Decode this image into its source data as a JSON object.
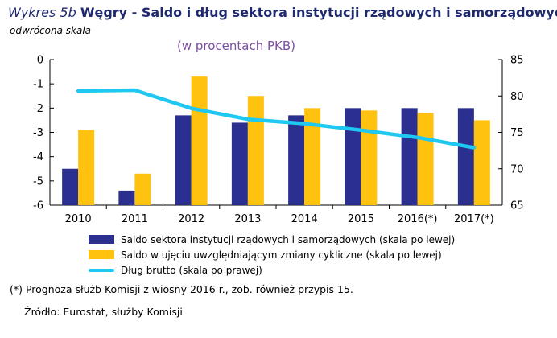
{
  "header": {
    "title_prefix": "Wykres 5b",
    "title": "Węgry - Saldo i dług sektora instytucji rządowych i samorządowych",
    "subtitle": "(w procentach PKB)",
    "axis_note": "odwrócona skala"
  },
  "footnote": "(*)  Prognoza służb Komisji z wiosny 2016 r., zob. również przypis 15.",
  "source": "Źródło: Eurostat, służby Komisji",
  "colors": {
    "series1": "#2b2f8f",
    "series2": "#ffc20e",
    "series3": "#1ec8f0"
  },
  "chart_data": {
    "type": "bar",
    "title": "Węgry - Saldo i dług sektora instytucji rządowych i samorządowych",
    "categories": [
      "2010",
      "2011",
      "2012",
      "2013",
      "2014",
      "2015",
      "2016(*)",
      "2017(*)"
    ],
    "y_left": {
      "ticks": [
        "-6",
        "-5",
        "-4",
        "-3",
        "-2",
        "-1",
        "0"
      ],
      "range": [
        0,
        -6
      ],
      "inverted": true
    },
    "y_right": {
      "ticks": [
        "85",
        "80",
        "75",
        "70",
        "65"
      ],
      "range": [
        65,
        85
      ]
    },
    "series": [
      {
        "name": "Saldo sektora instytucji rządowych i samorządowych (skala po lewej)",
        "type": "bar",
        "axis": "left",
        "values": [
          -4.5,
          -5.4,
          -2.3,
          -2.6,
          -2.3,
          -2.0,
          -2.0,
          -2.0
        ]
      },
      {
        "name": "Saldo w ujęciu uwzględniającym zmiany cykliczne (skala po lewej)",
        "type": "bar",
        "axis": "left",
        "values": [
          -2.9,
          -4.7,
          -0.7,
          -1.5,
          -2.0,
          -2.1,
          -2.2,
          -2.5
        ]
      },
      {
        "name": "Dług brutto (skala po prawej)",
        "type": "line",
        "axis": "right",
        "values": [
          80.7,
          80.8,
          78.3,
          76.8,
          76.2,
          75.3,
          74.3,
          72.9
        ]
      }
    ],
    "legend_position": "bottom",
    "grid": false
  }
}
